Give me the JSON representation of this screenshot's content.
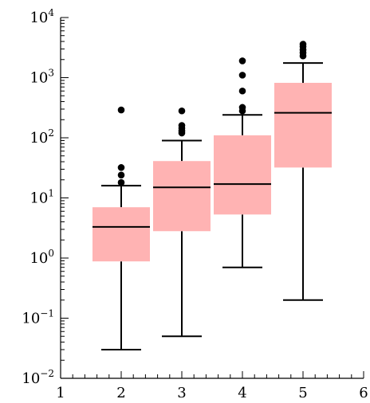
{
  "chart_data": {
    "type": "box",
    "title": "",
    "xlabel": "",
    "ylabel": "",
    "y_scale": "log",
    "xlim": [
      1,
      6
    ],
    "ylim": [
      0.01,
      10000
    ],
    "x_ticks": [
      1,
      2,
      3,
      4,
      5,
      6
    ],
    "y_ticks": [
      0.01,
      0.1,
      1,
      10,
      100,
      1000,
      10000
    ],
    "y_tick_exponents": [
      "−2",
      "−1",
      "0",
      "1",
      "2",
      "3",
      "4"
    ],
    "y_tick_base": "10",
    "box_color": "#ffb3b3",
    "line_color": "#000000",
    "boxes": [
      {
        "x": 2,
        "whisker_low": 0.03,
        "q1": 0.88,
        "median": 3.3,
        "q3": 7.0,
        "whisker_high": 16,
        "outliers": [
          18,
          24,
          32,
          290
        ]
      },
      {
        "x": 3,
        "whisker_low": 0.05,
        "q1": 2.8,
        "median": 15,
        "q3": 41,
        "whisker_high": 90,
        "outliers": [
          120,
          130,
          145,
          160,
          280
        ]
      },
      {
        "x": 4,
        "whisker_low": 0.7,
        "q1": 5.3,
        "median": 17,
        "q3": 110,
        "whisker_high": 240,
        "outliers": [
          280,
          320,
          600,
          1100,
          1900
        ]
      },
      {
        "x": 5,
        "whisker_low": 0.2,
        "q1": 32,
        "median": 260,
        "q3": 820,
        "whisker_high": 1750,
        "outliers": [
          2300,
          2600,
          2900,
          3300,
          3600
        ]
      }
    ]
  }
}
